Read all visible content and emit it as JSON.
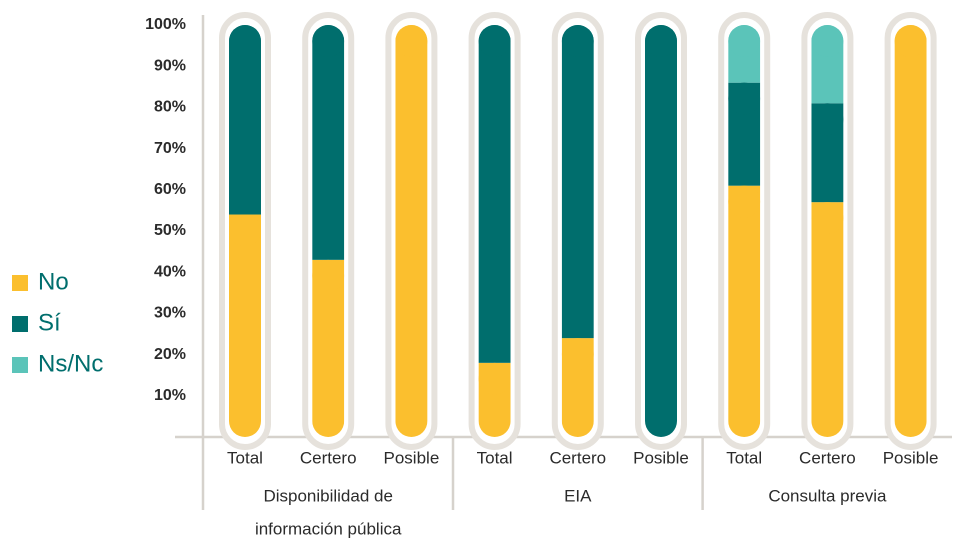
{
  "chart_data": {
    "type": "stacked_bar",
    "categories": [
      "Total",
      "Certero",
      "Posible",
      "Total",
      "Certero",
      "Posible",
      "Total",
      "Certero",
      "Posible"
    ],
    "groups": [
      {
        "label": [
          "Disponibilidad de",
          "información pública"
        ],
        "size": 3
      },
      {
        "label": [
          "EIA"
        ],
        "size": 3
      },
      {
        "label": [
          "Consulta previa"
        ],
        "size": 3
      }
    ],
    "series": [
      {
        "name": "No",
        "color": "#fbbf2e",
        "values": [
          54,
          43,
          100,
          18,
          24,
          0,
          61,
          57,
          100
        ]
      },
      {
        "name": "Sí",
        "color": "#006e6d",
        "values": [
          46,
          57,
          0,
          82,
          76,
          100,
          25,
          24,
          0
        ]
      },
      {
        "name": "Ns/Nc",
        "color": "#5bc4b9",
        "values": [
          0,
          0,
          0,
          0,
          0,
          0,
          14,
          19,
          0
        ]
      }
    ],
    "ylim": [
      0,
      100
    ],
    "yticks": [
      {
        "value": 10,
        "label": "10%"
      },
      {
        "value": 20,
        "label": "20%"
      },
      {
        "value": 30,
        "label": "30%"
      },
      {
        "value": 40,
        "label": "40%"
      },
      {
        "value": 50,
        "label": "50%"
      },
      {
        "value": 60,
        "label": "60%"
      },
      {
        "value": 70,
        "label": "70%"
      },
      {
        "value": 80,
        "label": "80%"
      },
      {
        "value": 90,
        "label": "90%"
      },
      {
        "value": 100,
        "label": "100%"
      }
    ],
    "legend": "left"
  }
}
